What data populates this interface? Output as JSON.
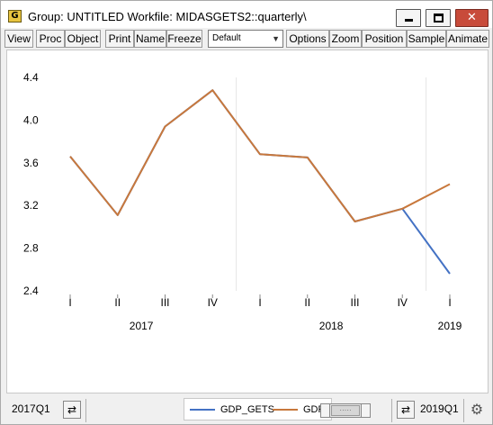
{
  "window": {
    "icon_letter": "G",
    "title": "Group: UNTITLED   Workfile: MIDASGETS2::quarterly\\"
  },
  "toolbar": {
    "view": "View",
    "proc": "Proc",
    "object": "Object",
    "print": "Print",
    "name": "Name",
    "freeze": "Freeze",
    "template": "Default",
    "options": "Options",
    "zoom": "Zoom",
    "position": "Position",
    "sample": "Sample",
    "animate": "Animate"
  },
  "chart_data": {
    "type": "line",
    "x": [
      "2017Q1",
      "2017Q2",
      "2017Q3",
      "2017Q4",
      "2018Q1",
      "2018Q2",
      "2018Q3",
      "2018Q4",
      "2019Q1"
    ],
    "x_tick_labels": [
      "I",
      "II",
      "III",
      "IV",
      "I",
      "II",
      "III",
      "IV",
      "I"
    ],
    "year_labels": [
      {
        "label": "2017",
        "at": 1.5
      },
      {
        "label": "2018",
        "at": 5.5
      },
      {
        "label": "2019",
        "at": 8
      }
    ],
    "series": [
      {
        "name": "GDP_GETS",
        "color": "#4472c4",
        "values": [
          3.66,
          3.11,
          3.94,
          4.28,
          3.68,
          3.65,
          3.05,
          3.17,
          2.56
        ]
      },
      {
        "name": "GDPGR",
        "color": "#c8783c",
        "values": [
          3.66,
          3.11,
          3.94,
          4.28,
          3.68,
          3.65,
          3.05,
          3.17,
          3.4
        ]
      }
    ],
    "y_ticks": [
      "4.4",
      "4.0",
      "3.6",
      "3.2",
      "2.8",
      "2.4"
    ],
    "ylim": [
      2.4,
      4.4
    ],
    "grid": "vertical at year boundaries",
    "legend": "bottom-center"
  },
  "statusbar": {
    "start": "2017Q1",
    "end": "2019Q1"
  }
}
